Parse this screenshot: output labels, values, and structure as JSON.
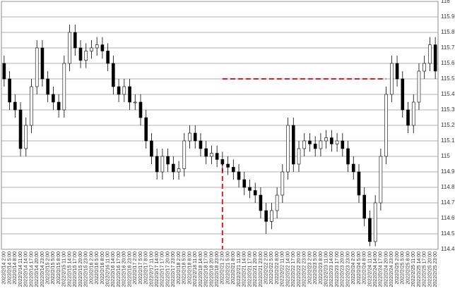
{
  "chart_data": {
    "type": "candlestick",
    "categories": [
      "2022/2/14 2:00",
      "2022/2/14 5:00",
      "2022/2/14 8:00",
      "2022/2/14 11:00",
      "2022/2/14 14:00",
      "2022/2/14 17:00",
      "2022/2/14 20:00",
      "2022/2/14 23:00",
      "2022/2/15 2:00",
      "2022/2/15 5:00",
      "2022/2/15 8:00",
      "2022/2/15 11:00",
      "2022/2/15 14:00",
      "2022/2/15 17:00",
      "2022/2/15 20:00",
      "2022/2/15 23:00",
      "2022/2/16 2:00",
      "2022/2/16 5:00",
      "2022/2/16 8:00",
      "2022/2/16 11:00",
      "2022/2/16 14:00",
      "2022/2/16 17:00",
      "2022/2/16 20:00",
      "2022/2/16 23:00",
      "2022/2/17 2:00",
      "2022/2/17 5:00",
      "2022/2/17 8:00",
      "2022/2/17 11:00",
      "2022/2/17 14:00",
      "2022/2/17 17:00",
      "2022/2/17 20:00",
      "2022/2/17 23:00",
      "2022/2/18 2:00",
      "2022/2/18 5:00",
      "2022/2/18 8:00",
      "2022/2/18 11:00",
      "2022/2/18 14:00",
      "2022/2/18 17:00",
      "2022/2/18 20:00",
      "2022/2/18 23:00",
      "2022/2/21 2:00",
      "2022/2/21 5:00",
      "2022/2/21 8:00",
      "2022/2/21 11:00",
      "2022/2/21 14:00",
      "2022/2/21 17:00",
      "2022/2/21 20:00",
      "2022/2/21 23:00",
      "2022/2/22 2:00",
      "2022/2/22 5:00",
      "2022/2/22 8:00",
      "2022/2/22 11:00",
      "2022/2/22 14:00",
      "2022/2/22 17:00",
      "2022/2/22 20:00",
      "2022/2/22 23:00",
      "2022/2/23 2:00",
      "2022/2/23 5:00",
      "2022/2/23 8:00",
      "2022/2/23 11:00",
      "2022/2/23 14:00",
      "2022/2/23 17:00",
      "2022/2/23 20:00",
      "2022/2/23 23:00",
      "2022/2/24 2:00",
      "2022/2/24 5:00",
      "2022/2/24 8:00",
      "2022/2/24 11:00",
      "2022/2/24 14:00",
      "2022/2/24 17:00",
      "2022/2/24 20:00",
      "2022/2/24 23:00",
      "2022/2/25 2:00",
      "2022/2/25 5:00",
      "2022/2/25 8:00",
      "2022/2/25 11:00",
      "2022/2/25 14:00",
      "2022/2/25 17:00",
      "2022/2/25 20:00",
      "2022/2/25 23:00"
    ],
    "open": [
      115.6,
      115.5,
      115.35,
      115.3,
      115.05,
      115.2,
      115.45,
      115.7,
      115.5,
      115.4,
      115.35,
      115.3,
      115.6,
      115.8,
      115.7,
      115.62,
      115.68,
      115.7,
      115.72,
      115.68,
      115.6,
      115.45,
      115.4,
      115.45,
      115.35,
      115.35,
      115.25,
      115.1,
      115.0,
      114.9,
      115.0,
      114.95,
      114.9,
      114.92,
      115.1,
      115.15,
      115.1,
      115.05,
      115.0,
      115.02,
      114.98,
      114.95,
      114.93,
      114.9,
      114.85,
      114.8,
      114.78,
      114.75,
      114.65,
      114.58,
      114.65,
      114.75,
      114.9,
      115.2,
      114.95,
      115.05,
      115.1,
      115.08,
      115.05,
      115.1,
      115.12,
      115.08,
      115.1,
      115.05,
      114.95,
      114.9,
      114.75,
      114.6,
      114.45,
      114.7,
      115.0,
      115.4,
      115.6,
      115.5,
      115.3,
      115.2,
      115.35,
      115.55,
      115.6,
      115.72
    ],
    "high": [
      115.65,
      115.55,
      115.4,
      115.35,
      115.25,
      115.5,
      115.75,
      115.75,
      115.55,
      115.45,
      115.4,
      115.65,
      115.85,
      115.85,
      115.75,
      115.73,
      115.75,
      115.77,
      115.77,
      115.73,
      115.65,
      115.5,
      115.5,
      115.5,
      115.4,
      115.4,
      115.3,
      115.15,
      115.05,
      115.05,
      115.05,
      115.0,
      114.97,
      115.15,
      115.2,
      115.2,
      115.15,
      115.1,
      115.07,
      115.07,
      115.03,
      115.0,
      114.98,
      114.95,
      114.9,
      114.85,
      114.83,
      114.8,
      114.7,
      114.7,
      114.8,
      114.95,
      115.25,
      115.25,
      115.1,
      115.15,
      115.15,
      115.13,
      115.15,
      115.17,
      115.17,
      115.15,
      115.15,
      115.1,
      115.0,
      114.95,
      114.8,
      114.65,
      114.75,
      115.05,
      115.45,
      115.65,
      115.65,
      115.55,
      115.35,
      115.4,
      115.6,
      115.65,
      115.77,
      115.77
    ],
    "low": [
      115.45,
      115.3,
      115.25,
      115.0,
      115.0,
      115.15,
      115.4,
      115.45,
      115.35,
      115.3,
      115.25,
      115.25,
      115.55,
      115.65,
      115.57,
      115.57,
      115.63,
      115.65,
      115.63,
      115.55,
      115.4,
      115.35,
      115.35,
      115.3,
      115.3,
      115.2,
      115.05,
      114.95,
      114.85,
      114.85,
      114.9,
      114.85,
      114.85,
      114.87,
      115.05,
      115.05,
      115.0,
      114.95,
      114.95,
      114.93,
      114.9,
      114.88,
      114.85,
      114.8,
      114.75,
      114.73,
      114.7,
      114.6,
      114.5,
      114.53,
      114.6,
      114.7,
      114.85,
      114.9,
      114.9,
      115.0,
      115.03,
      115.0,
      115.0,
      115.05,
      115.03,
      115.03,
      115.0,
      114.9,
      114.85,
      114.7,
      114.55,
      114.42,
      114.42,
      114.65,
      114.95,
      115.35,
      115.45,
      115.25,
      115.15,
      115.15,
      115.3,
      115.5,
      115.55,
      115.5
    ],
    "close": [
      115.5,
      115.35,
      115.3,
      115.05,
      115.2,
      115.45,
      115.7,
      115.5,
      115.4,
      115.35,
      115.3,
      115.6,
      115.8,
      115.7,
      115.62,
      115.68,
      115.7,
      115.72,
      115.68,
      115.6,
      115.45,
      115.4,
      115.45,
      115.35,
      115.35,
      115.25,
      115.1,
      115.0,
      114.9,
      115.0,
      114.95,
      114.9,
      114.92,
      115.1,
      115.15,
      115.1,
      115.05,
      115.0,
      115.02,
      114.98,
      114.95,
      114.93,
      114.9,
      114.85,
      114.8,
      114.78,
      114.75,
      114.65,
      114.58,
      114.65,
      114.75,
      114.9,
      115.2,
      114.95,
      115.05,
      115.1,
      115.08,
      115.05,
      115.1,
      115.12,
      115.08,
      115.1,
      115.05,
      114.95,
      114.9,
      114.75,
      114.6,
      114.45,
      114.7,
      115.0,
      115.4,
      115.6,
      115.5,
      115.3,
      115.2,
      115.35,
      115.55,
      115.6,
      115.72,
      115.55
    ],
    "ylim": [
      114.4,
      116
    ],
    "yticks": [
      114.4,
      114.5,
      114.6,
      114.7,
      114.8,
      114.9,
      115,
      115.1,
      115.2,
      115.3,
      115.4,
      115.5,
      115.6,
      115.7,
      115.8,
      115.9,
      116
    ],
    "grid": true,
    "up_color": "#ffffff",
    "down_color": "#000000",
    "reference_level": 115.5,
    "reference_color": "#e02020"
  }
}
